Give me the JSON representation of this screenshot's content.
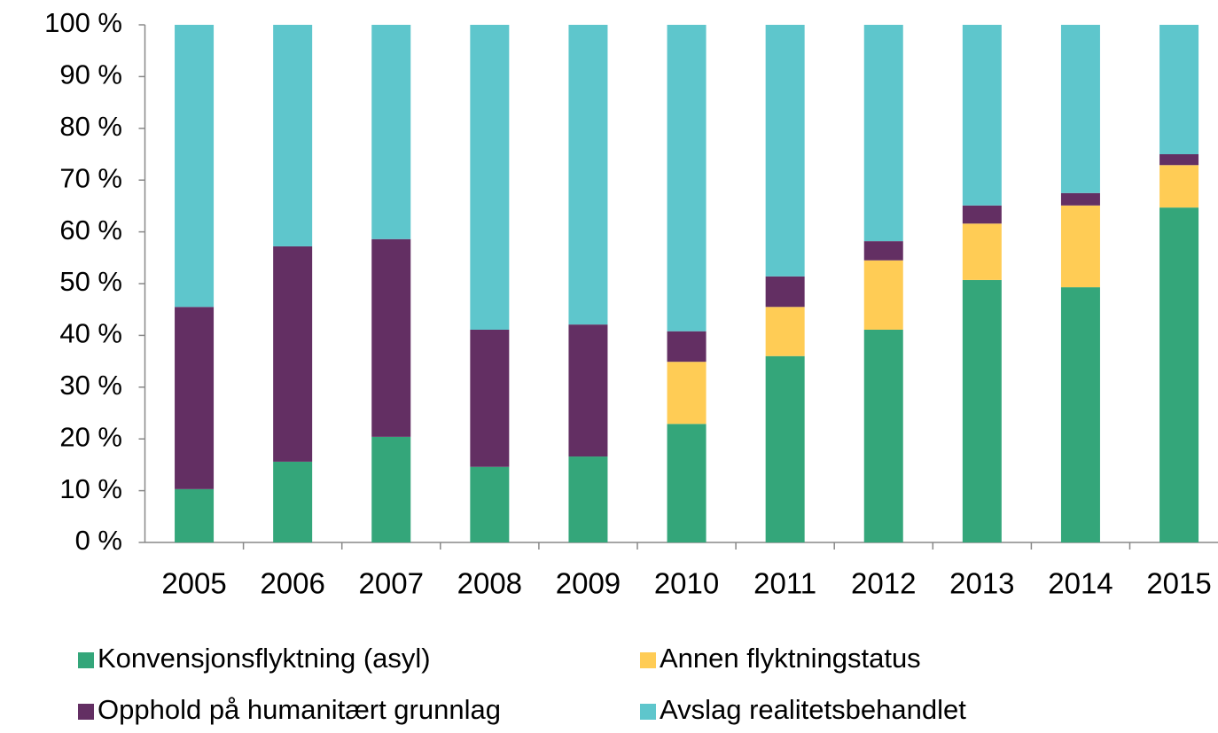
{
  "chart_data": {
    "type": "stacked_bar",
    "categories": [
      "2005",
      "2006",
      "2007",
      "2008",
      "2009",
      "2010",
      "2011",
      "2012",
      "2013",
      "2014",
      "2015"
    ],
    "series": [
      {
        "name": "Konvensjonsflyktning (asyl)",
        "color": "#34a67a",
        "values": [
          10.3,
          15.6,
          20.4,
          14.6,
          16.6,
          22.9,
          36.0,
          41.1,
          50.7,
          49.3,
          64.7
        ]
      },
      {
        "name": "Annen flyktningstatus",
        "color": "#ffcc55",
        "values": [
          0,
          0,
          0,
          0,
          0,
          12.0,
          9.5,
          13.4,
          10.9,
          15.8,
          8.2
        ]
      },
      {
        "name": "Opphold på humanitært grunnlag",
        "color": "#632f63",
        "values": [
          35.2,
          41.6,
          38.2,
          26.5,
          25.5,
          5.9,
          5.9,
          3.7,
          3.5,
          2.4,
          2.1
        ]
      },
      {
        "name": "Avslag realitetsbehandlet",
        "color": "#5ec6cc",
        "values": [
          54.5,
          42.8,
          41.4,
          58.9,
          57.9,
          59.2,
          48.6,
          41.8,
          34.9,
          32.5,
          25.0
        ]
      }
    ],
    "ylim": [
      0,
      100
    ],
    "yticks": [
      {
        "value": 0,
        "label": "0 %"
      },
      {
        "value": 10,
        "label": "10 %"
      },
      {
        "value": 20,
        "label": "20 %"
      },
      {
        "value": 30,
        "label": "30 %"
      },
      {
        "value": 40,
        "label": "40 %"
      },
      {
        "value": 50,
        "label": "50 %"
      },
      {
        "value": 60,
        "label": "60 %"
      },
      {
        "value": 70,
        "label": "70 %"
      },
      {
        "value": 80,
        "label": "80 %"
      },
      {
        "value": 90,
        "label": "90 %"
      },
      {
        "value": 100,
        "label": "100 %"
      }
    ],
    "legend": "bottom"
  }
}
